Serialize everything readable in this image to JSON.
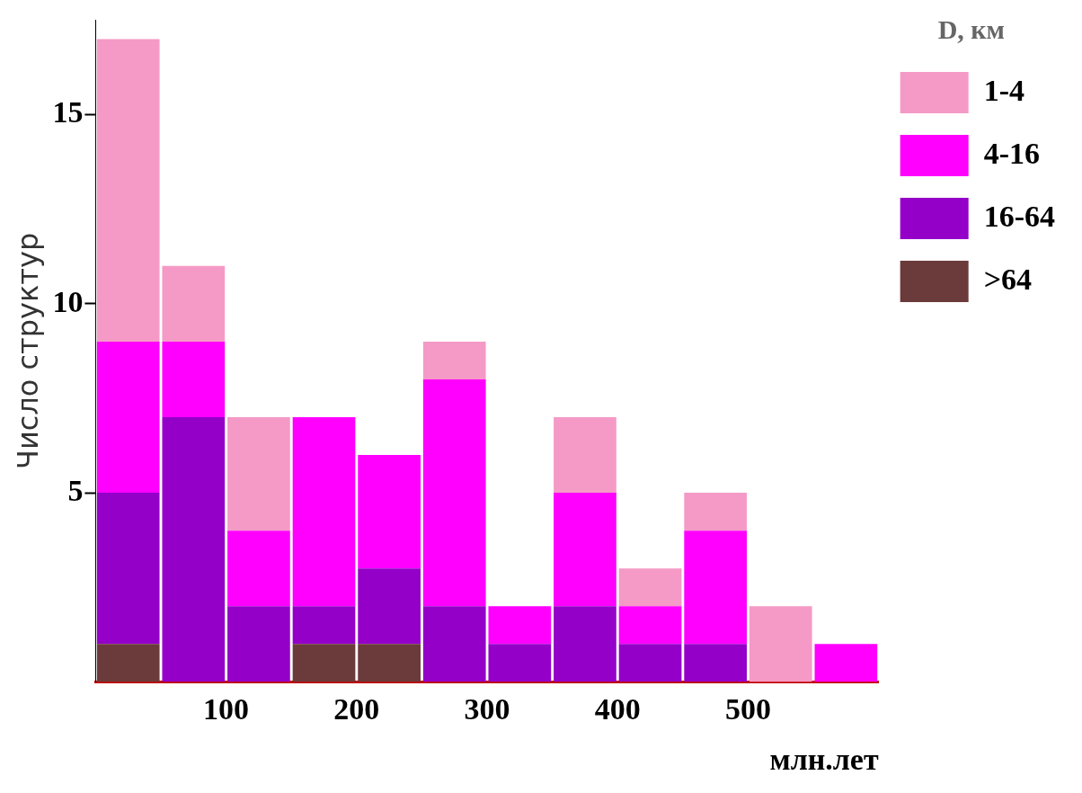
{
  "chart_data": {
    "type": "bar",
    "xlabel": "млн.лет",
    "ylabel": "Число структур",
    "legend_title": "D, км",
    "x": [
      25,
      75,
      125,
      175,
      225,
      275,
      325,
      375,
      425,
      475,
      525,
      575
    ],
    "stacked": true,
    "series": [
      {
        "name": ">64",
        "color": "#6b3a3a",
        "values": [
          1,
          0,
          0,
          1,
          1,
          0,
          0,
          0,
          0,
          0,
          0,
          0
        ]
      },
      {
        "name": "16-64",
        "color": "#9400c8",
        "values": [
          4,
          7,
          2,
          1,
          2,
          2,
          1,
          2,
          1,
          1,
          0,
          0
        ]
      },
      {
        "name": "4-16",
        "color": "#ff00ff",
        "values": [
          4,
          2,
          2,
          5,
          3,
          6,
          1,
          3,
          1,
          3,
          0,
          1
        ]
      },
      {
        "name": "1-4",
        "color": "#f59ac6",
        "values": [
          8,
          2,
          3,
          0,
          0,
          1,
          0,
          2,
          1,
          1,
          2,
          0
        ]
      }
    ],
    "xlim": [
      0,
      600
    ],
    "xticks": [
      100,
      200,
      300,
      400,
      500
    ],
    "ylim": [
      0,
      17.5
    ],
    "yticks": [
      5,
      10,
      15
    ],
    "grid": false,
    "legend": "top right"
  }
}
